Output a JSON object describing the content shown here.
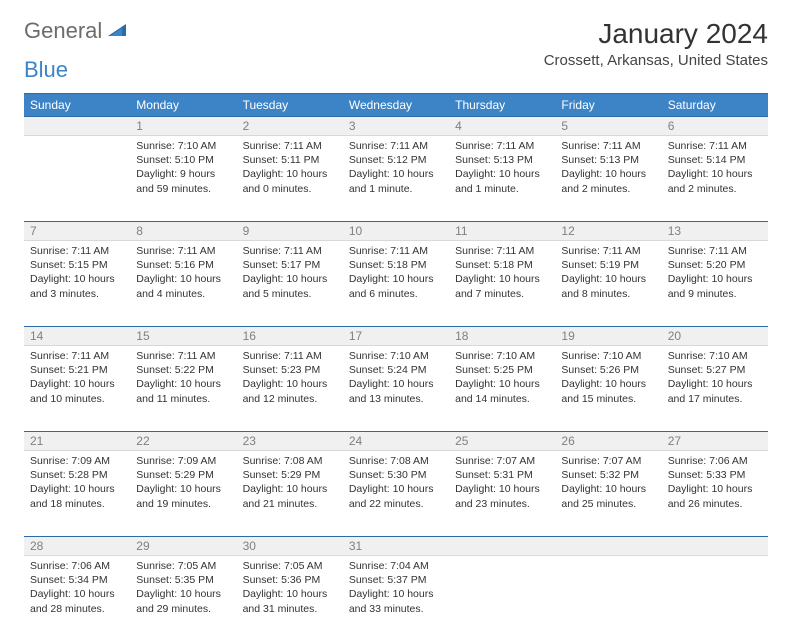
{
  "logo": {
    "part1": "General",
    "part2": "Blue"
  },
  "title": "January 2024",
  "location": "Crossett, Arkansas, United States",
  "colors": {
    "header_bg": "#3d84c6",
    "rule": "#2a6aa8",
    "daynum_bg": "#f0f0f0",
    "daynum_text": "#808080",
    "body_text": "#333333"
  },
  "day_headers": [
    "Sunday",
    "Monday",
    "Tuesday",
    "Wednesday",
    "Thursday",
    "Friday",
    "Saturday"
  ],
  "weeks": [
    {
      "nums": [
        "",
        "1",
        "2",
        "3",
        "4",
        "5",
        "6"
      ],
      "cells": [
        {
          "empty": true
        },
        {
          "sunrise": "7:10 AM",
          "sunset": "5:10 PM",
          "daylight": "9 hours and 59 minutes."
        },
        {
          "sunrise": "7:11 AM",
          "sunset": "5:11 PM",
          "daylight": "10 hours and 0 minutes."
        },
        {
          "sunrise": "7:11 AM",
          "sunset": "5:12 PM",
          "daylight": "10 hours and 1 minute."
        },
        {
          "sunrise": "7:11 AM",
          "sunset": "5:13 PM",
          "daylight": "10 hours and 1 minute."
        },
        {
          "sunrise": "7:11 AM",
          "sunset": "5:13 PM",
          "daylight": "10 hours and 2 minutes."
        },
        {
          "sunrise": "7:11 AM",
          "sunset": "5:14 PM",
          "daylight": "10 hours and 2 minutes."
        }
      ]
    },
    {
      "nums": [
        "7",
        "8",
        "9",
        "10",
        "11",
        "12",
        "13"
      ],
      "cells": [
        {
          "sunrise": "7:11 AM",
          "sunset": "5:15 PM",
          "daylight": "10 hours and 3 minutes."
        },
        {
          "sunrise": "7:11 AM",
          "sunset": "5:16 PM",
          "daylight": "10 hours and 4 minutes."
        },
        {
          "sunrise": "7:11 AM",
          "sunset": "5:17 PM",
          "daylight": "10 hours and 5 minutes."
        },
        {
          "sunrise": "7:11 AM",
          "sunset": "5:18 PM",
          "daylight": "10 hours and 6 minutes."
        },
        {
          "sunrise": "7:11 AM",
          "sunset": "5:18 PM",
          "daylight": "10 hours and 7 minutes."
        },
        {
          "sunrise": "7:11 AM",
          "sunset": "5:19 PM",
          "daylight": "10 hours and 8 minutes."
        },
        {
          "sunrise": "7:11 AM",
          "sunset": "5:20 PM",
          "daylight": "10 hours and 9 minutes."
        }
      ]
    },
    {
      "nums": [
        "14",
        "15",
        "16",
        "17",
        "18",
        "19",
        "20"
      ],
      "cells": [
        {
          "sunrise": "7:11 AM",
          "sunset": "5:21 PM",
          "daylight": "10 hours and 10 minutes."
        },
        {
          "sunrise": "7:11 AM",
          "sunset": "5:22 PM",
          "daylight": "10 hours and 11 minutes."
        },
        {
          "sunrise": "7:11 AM",
          "sunset": "5:23 PM",
          "daylight": "10 hours and 12 minutes."
        },
        {
          "sunrise": "7:10 AM",
          "sunset": "5:24 PM",
          "daylight": "10 hours and 13 minutes."
        },
        {
          "sunrise": "7:10 AM",
          "sunset": "5:25 PM",
          "daylight": "10 hours and 14 minutes."
        },
        {
          "sunrise": "7:10 AM",
          "sunset": "5:26 PM",
          "daylight": "10 hours and 15 minutes."
        },
        {
          "sunrise": "7:10 AM",
          "sunset": "5:27 PM",
          "daylight": "10 hours and 17 minutes."
        }
      ]
    },
    {
      "nums": [
        "21",
        "22",
        "23",
        "24",
        "25",
        "26",
        "27"
      ],
      "cells": [
        {
          "sunrise": "7:09 AM",
          "sunset": "5:28 PM",
          "daylight": "10 hours and 18 minutes."
        },
        {
          "sunrise": "7:09 AM",
          "sunset": "5:29 PM",
          "daylight": "10 hours and 19 minutes."
        },
        {
          "sunrise": "7:08 AM",
          "sunset": "5:29 PM",
          "daylight": "10 hours and 21 minutes."
        },
        {
          "sunrise": "7:08 AM",
          "sunset": "5:30 PM",
          "daylight": "10 hours and 22 minutes."
        },
        {
          "sunrise": "7:07 AM",
          "sunset": "5:31 PM",
          "daylight": "10 hours and 23 minutes."
        },
        {
          "sunrise": "7:07 AM",
          "sunset": "5:32 PM",
          "daylight": "10 hours and 25 minutes."
        },
        {
          "sunrise": "7:06 AM",
          "sunset": "5:33 PM",
          "daylight": "10 hours and 26 minutes."
        }
      ]
    },
    {
      "nums": [
        "28",
        "29",
        "30",
        "31",
        "",
        "",
        ""
      ],
      "cells": [
        {
          "sunrise": "7:06 AM",
          "sunset": "5:34 PM",
          "daylight": "10 hours and 28 minutes."
        },
        {
          "sunrise": "7:05 AM",
          "sunset": "5:35 PM",
          "daylight": "10 hours and 29 minutes."
        },
        {
          "sunrise": "7:05 AM",
          "sunset": "5:36 PM",
          "daylight": "10 hours and 31 minutes."
        },
        {
          "sunrise": "7:04 AM",
          "sunset": "5:37 PM",
          "daylight": "10 hours and 33 minutes."
        },
        {
          "empty": true
        },
        {
          "empty": true
        },
        {
          "empty": true
        }
      ]
    }
  ],
  "labels": {
    "sunrise": "Sunrise:",
    "sunset": "Sunset:",
    "daylight": "Daylight:"
  }
}
